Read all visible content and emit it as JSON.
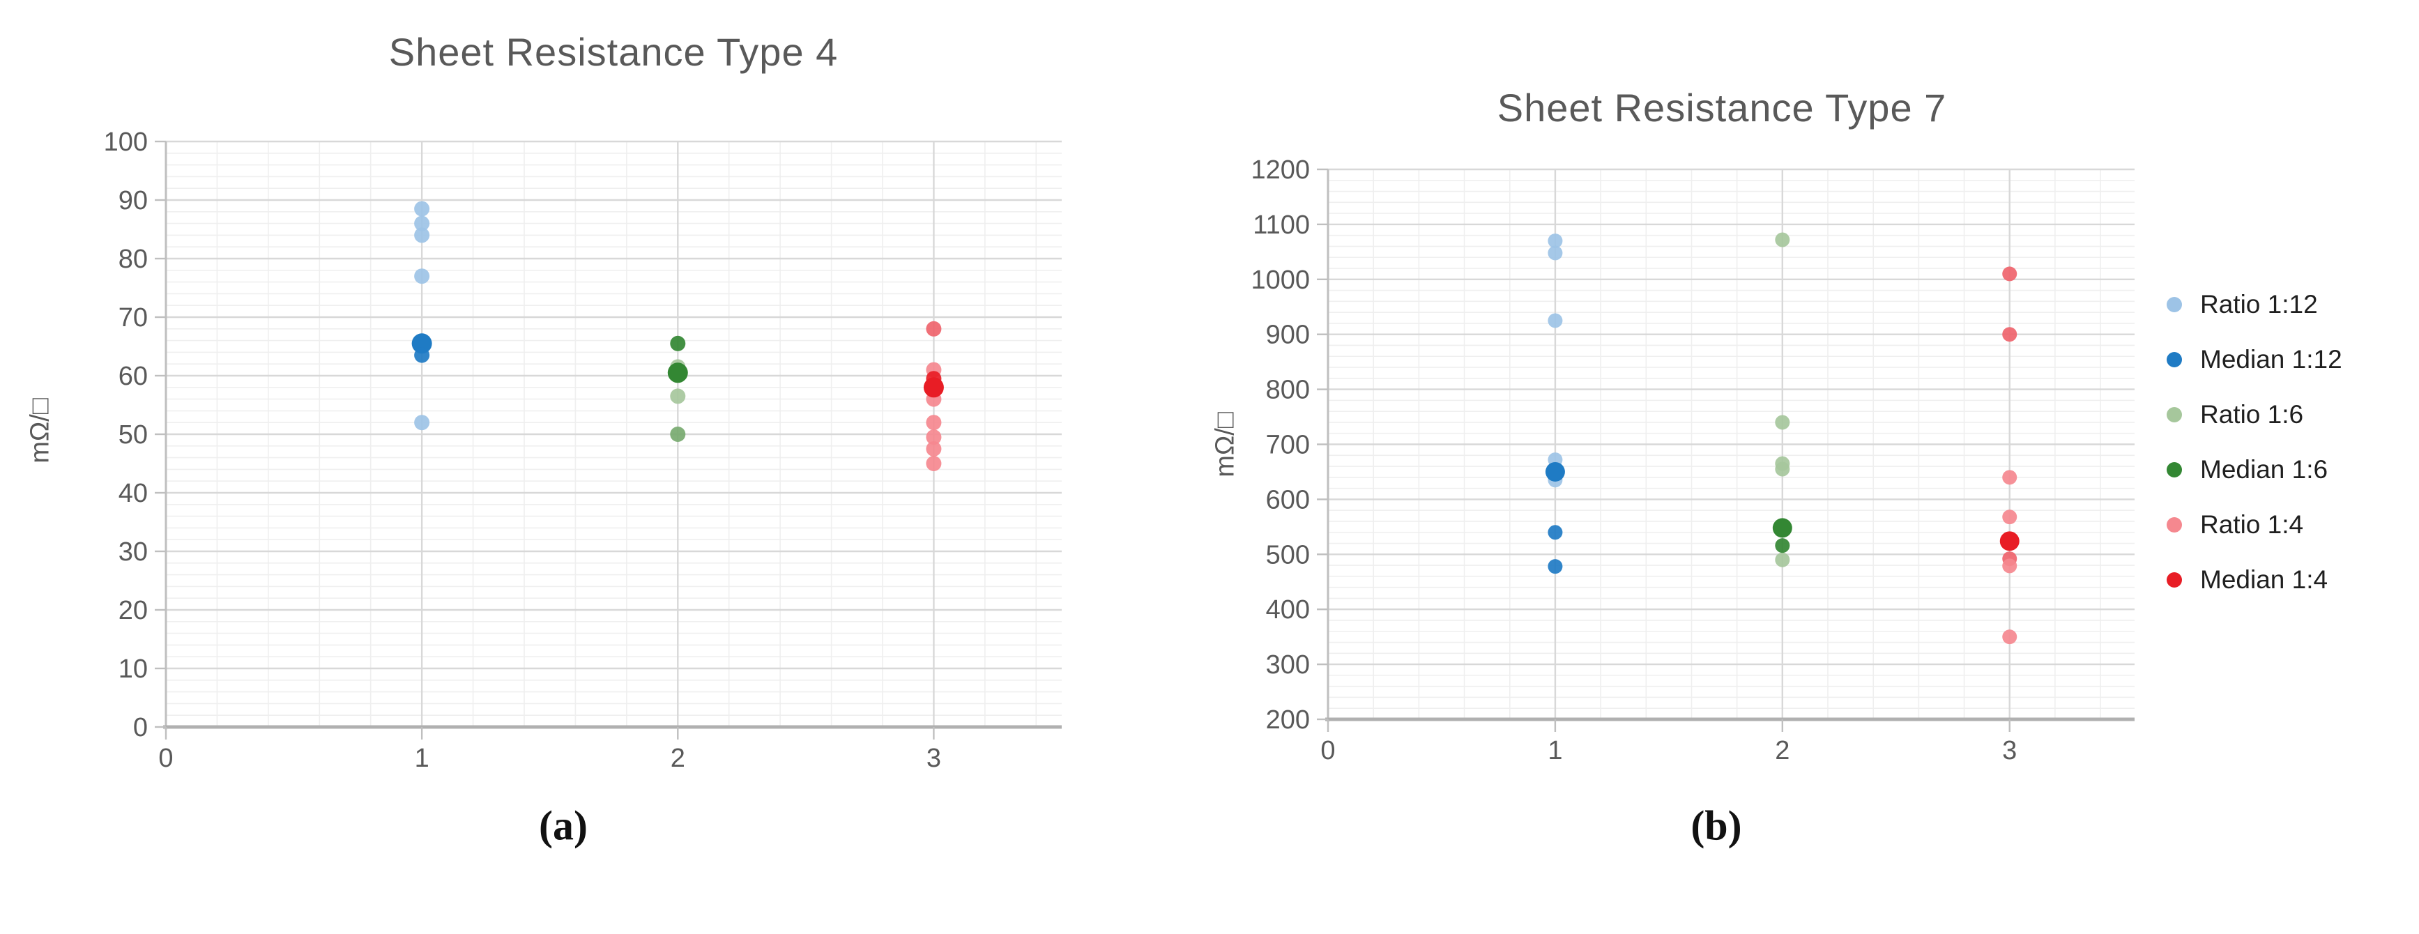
{
  "figure": {
    "background": "#ffffff"
  },
  "captions": {
    "a": "(a)",
    "b": "(b)"
  },
  "colors": {
    "light_blue": "#9dc3e6",
    "dark_blue": "#1f7bc4",
    "light_green": "#a6c79c",
    "mid_green": "#78aa70",
    "dark_green": "#338733",
    "light_red": "#f5888f",
    "mid_red": "#ef646c",
    "dark_red": "#e81d25",
    "axis_line": "#bfbfbf",
    "axis_bottom": "#b0b0b0",
    "grid_major": "#d8d8d8",
    "grid_minor": "#efefef",
    "tick_text": "#595959",
    "title_text": "#595959",
    "legend_text": "#1f1f1f"
  },
  "legend": {
    "position": "right",
    "items": [
      {
        "label": "Ratio 1:12",
        "color_key": "light_blue"
      },
      {
        "label": "Median 1:12",
        "color_key": "dark_blue"
      },
      {
        "label": "Ratio 1:6",
        "color_key": "light_green"
      },
      {
        "label": "Median 1:6",
        "color_key": "dark_green"
      },
      {
        "label": "Ratio 1:4",
        "color_key": "light_red"
      },
      {
        "label": "Median 1:4",
        "color_key": "dark_red"
      }
    ]
  },
  "chart_data": [
    {
      "type": "scatter",
      "title": "Sheet Resistance Type 4",
      "xlabel": "",
      "ylabel": "mΩ/□",
      "xlim": [
        0,
        3.5
      ],
      "ylim": [
        0,
        100
      ],
      "x_ticks": [
        0,
        1,
        2,
        3
      ],
      "y_ticks": [
        0,
        10,
        20,
        30,
        40,
        50,
        60,
        70,
        80,
        90,
        100
      ],
      "y_minor_step": 2,
      "x_minor_step": 0.2,
      "grid": true,
      "series": [
        {
          "name": "Ratio 1:12",
          "color_key": "light_blue",
          "points": [
            {
              "x": 1,
              "y": 88.5
            },
            {
              "x": 1,
              "y": 86
            },
            {
              "x": 1,
              "y": 84
            },
            {
              "x": 1,
              "y": 77
            },
            {
              "x": 1,
              "y": 52
            }
          ]
        },
        {
          "name": "Median 1:12",
          "color_key": "dark_blue",
          "points": [
            {
              "x": 1,
              "y": 65.5,
              "size": "large"
            },
            {
              "x": 1,
              "y": 63.5
            }
          ]
        },
        {
          "name": "Ratio 1:6",
          "color_key": "light_green",
          "points": [
            {
              "x": 2,
              "y": 61.5
            },
            {
              "x": 2,
              "y": 56.5
            },
            {
              "x": 2,
              "y": 50,
              "color_key": "mid_green"
            }
          ]
        },
        {
          "name": "Median 1:6",
          "color_key": "dark_green",
          "points": [
            {
              "x": 2,
              "y": 65.5
            },
            {
              "x": 2,
              "y": 60.5,
              "size": "large"
            }
          ]
        },
        {
          "name": "Ratio 1:4",
          "color_key": "light_red",
          "points": [
            {
              "x": 3,
              "y": 68,
              "color_key": "mid_red"
            },
            {
              "x": 3,
              "y": 61
            },
            {
              "x": 3,
              "y": 56
            },
            {
              "x": 3,
              "y": 52
            },
            {
              "x": 3,
              "y": 49.5
            },
            {
              "x": 3,
              "y": 47.5
            },
            {
              "x": 3,
              "y": 45
            }
          ]
        },
        {
          "name": "Median 1:4",
          "color_key": "dark_red",
          "points": [
            {
              "x": 3,
              "y": 59.5
            },
            {
              "x": 3,
              "y": 58,
              "size": "large"
            }
          ]
        }
      ]
    },
    {
      "type": "scatter",
      "title": "Sheet Resistance Type 7",
      "xlabel": "",
      "ylabel": "mΩ/□",
      "xlim": [
        0,
        3.55
      ],
      "ylim": [
        200,
        1200
      ],
      "x_ticks": [
        0,
        1,
        2,
        3
      ],
      "y_ticks": [
        200,
        300,
        400,
        500,
        600,
        700,
        800,
        900,
        1000,
        1100,
        1200
      ],
      "y_minor_step": 20,
      "x_minor_step": 0.2,
      "grid": true,
      "series": [
        {
          "name": "Ratio 1:12",
          "color_key": "light_blue",
          "points": [
            {
              "x": 1,
              "y": 1070
            },
            {
              "x": 1,
              "y": 1048
            },
            {
              "x": 1,
              "y": 925
            },
            {
              "x": 1,
              "y": 672
            },
            {
              "x": 1,
              "y": 635
            }
          ]
        },
        {
          "name": "Median 1:12",
          "color_key": "dark_blue",
          "points": [
            {
              "x": 1,
              "y": 650,
              "size": "large"
            },
            {
              "x": 1,
              "y": 540
            },
            {
              "x": 1,
              "y": 478
            }
          ]
        },
        {
          "name": "Ratio 1:6",
          "color_key": "light_green",
          "points": [
            {
              "x": 2,
              "y": 1072
            },
            {
              "x": 2,
              "y": 740
            },
            {
              "x": 2,
              "y": 665
            },
            {
              "x": 2,
              "y": 655
            },
            {
              "x": 2,
              "y": 490
            }
          ]
        },
        {
          "name": "Median 1:6",
          "color_key": "dark_green",
          "points": [
            {
              "x": 2,
              "y": 548,
              "size": "large"
            },
            {
              "x": 2,
              "y": 516
            }
          ]
        },
        {
          "name": "Ratio 1:4",
          "color_key": "light_red",
          "points": [
            {
              "x": 3,
              "y": 1010,
              "color_key": "mid_red"
            },
            {
              "x": 3,
              "y": 900,
              "color_key": "mid_red"
            },
            {
              "x": 3,
              "y": 640
            },
            {
              "x": 3,
              "y": 568
            },
            {
              "x": 3,
              "y": 492,
              "color_key": "mid_red"
            },
            {
              "x": 3,
              "y": 479
            },
            {
              "x": 3,
              "y": 350
            }
          ]
        },
        {
          "name": "Median 1:4",
          "color_key": "dark_red",
          "points": [
            {
              "x": 3,
              "y": 524,
              "size": "large"
            }
          ]
        }
      ]
    }
  ]
}
